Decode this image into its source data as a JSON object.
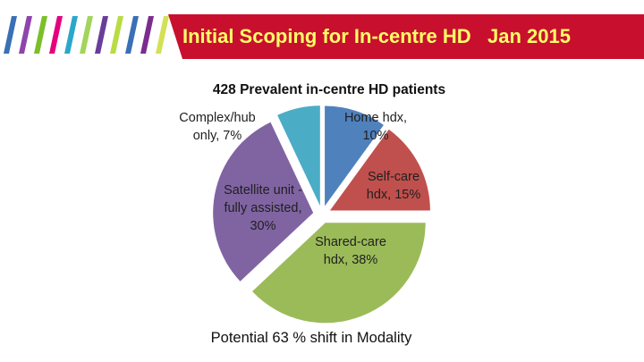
{
  "slide": {
    "title": "Initial Scoping for In-centre HD   Jan 2015",
    "banner_color": "#c8102e",
    "title_color": "#ffff66",
    "stripe_colors": [
      "#3b6fb6",
      "#8e44ad",
      "#7bbf2a",
      "#e6007e",
      "#2aa7c9",
      "#a3d45c",
      "#6a3d9a",
      "#b9db43",
      "#3b6fb6",
      "#7b2d8e",
      "#d4e157"
    ]
  },
  "chart_data": {
    "type": "pie",
    "title": "428 Prevalent in-centre HD patients",
    "footnote": "Potential 63 % shift in Modality",
    "exploded": true,
    "slices": [
      {
        "name": "Home hdx",
        "value": 10,
        "color": "#4f81bd",
        "label": [
          "Home hdx,",
          "10%"
        ]
      },
      {
        "name": "Self-care hdx",
        "value": 15,
        "color": "#c0504d",
        "label": [
          "Self-care",
          "hdx, 15%"
        ]
      },
      {
        "name": "Shared-care hdx",
        "value": 38,
        "color": "#9bbb59",
        "label": [
          "Shared-care",
          "hdx, 38%"
        ]
      },
      {
        "name": "Satellite unit - fully assisted",
        "value": 30,
        "color": "#8064a2",
        "label": [
          "Satellite unit -",
          "fully assisted,",
          "30%"
        ]
      },
      {
        "name": "Complex/hub only",
        "value": 7,
        "color": "#4bacc6",
        "label": [
          "Complex/hub",
          "only, 7%"
        ]
      }
    ]
  }
}
